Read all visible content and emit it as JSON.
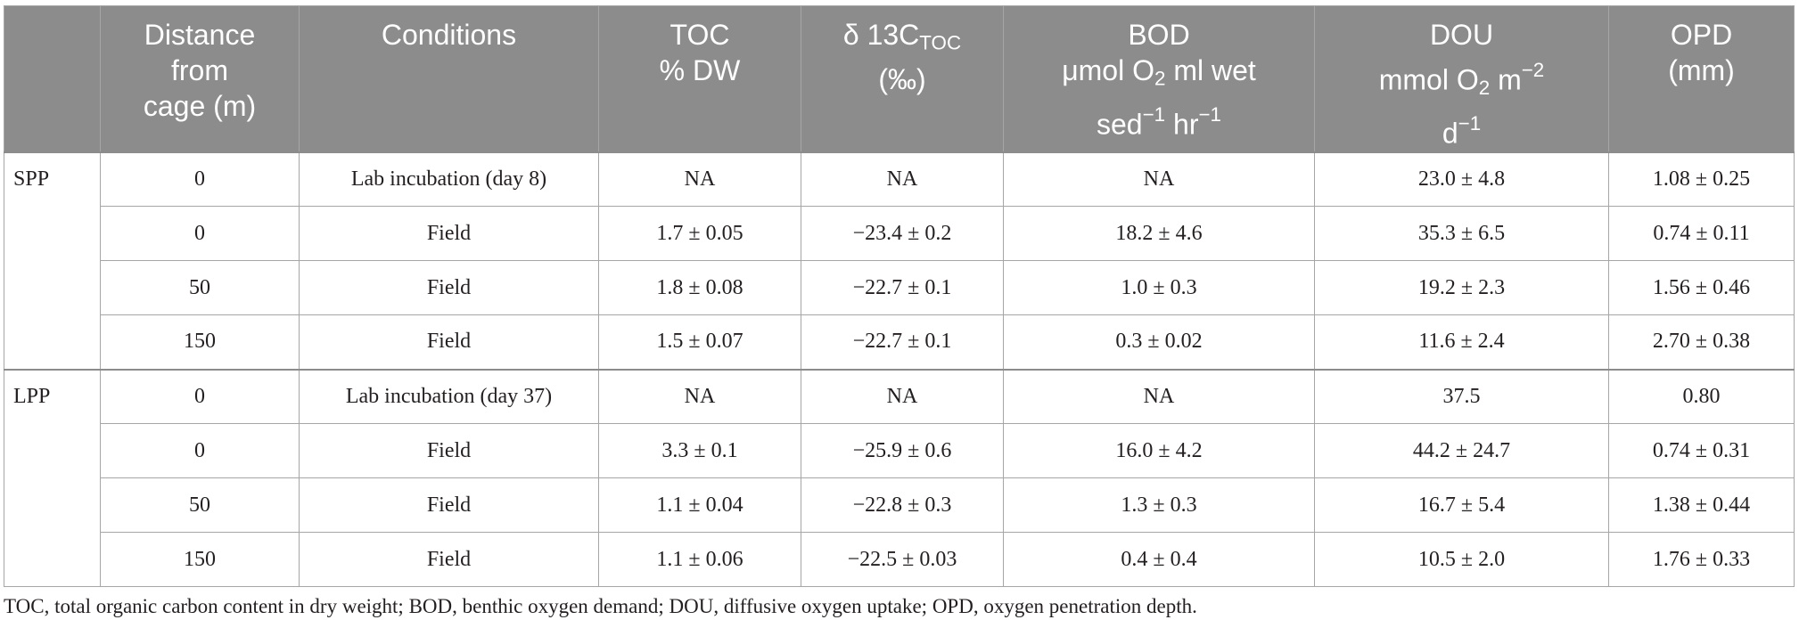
{
  "table": {
    "columns": [
      {
        "col_html": ""
      },
      {
        "col_html": "Distance<br>from<br>cage (m)"
      },
      {
        "col_html": "Conditions"
      },
      {
        "col_html": "TOC<br>% DW"
      },
      {
        "col_html": "δ 13C<sub>TOC</sub><br>(‰)"
      },
      {
        "col_html": "BOD<br>μmol O<sub>2</sub> ml wet<br>sed<sup>−1</sup> hr<sup>−1</sup>"
      },
      {
        "col_html": "DOU<br>mmol O<sub>2</sub> m<sup>−2</sup><br>d<sup>−1</sup>"
      },
      {
        "col_html": "OPD<br>(mm)"
      }
    ],
    "groups": [
      {
        "label": "SPP",
        "rows": [
          {
            "distance": "0",
            "conditions": "Lab incubation (day 8)",
            "toc": "NA",
            "d13c": "NA",
            "bod": "NA",
            "dou": "23.0 ± 4.8",
            "opd": "1.08 ± 0.25"
          },
          {
            "distance": "0",
            "conditions": "Field",
            "toc": "1.7 ± 0.05",
            "d13c": "−23.4 ± 0.2",
            "bod": "18.2 ± 4.6",
            "dou": "35.3 ± 6.5",
            "opd": "0.74 ± 0.11"
          },
          {
            "distance": "50",
            "conditions": "Field",
            "toc": "1.8 ± 0.08",
            "d13c": "−22.7 ± 0.1",
            "bod": "1.0 ± 0.3",
            "dou": "19.2 ± 2.3",
            "opd": "1.56 ± 0.46"
          },
          {
            "distance": "150",
            "conditions": "Field",
            "toc": "1.5 ± 0.07",
            "d13c": "−22.7 ± 0.1",
            "bod": "0.3 ± 0.02",
            "dou": "11.6 ± 2.4",
            "opd": "2.70 ± 0.38"
          }
        ]
      },
      {
        "label": "LPP",
        "rows": [
          {
            "distance": "0",
            "conditions": "Lab incubation (day 37)",
            "toc": "NA",
            "d13c": "NA",
            "bod": "NA",
            "dou": "37.5",
            "opd": "0.80"
          },
          {
            "distance": "0",
            "conditions": "Field",
            "toc": "3.3 ± 0.1",
            "d13c": "−25.9 ± 0.6",
            "bod": "16.0 ± 4.2",
            "dou": "44.2 ± 24.7",
            "opd": "0.74 ± 0.31"
          },
          {
            "distance": "50",
            "conditions": "Field",
            "toc": "1.1 ± 0.04",
            "d13c": "−22.8 ± 0.3",
            "bod": "1.3 ± 0.3",
            "dou": "16.7 ± 5.4",
            "opd": "1.38 ± 0.44"
          },
          {
            "distance": "150",
            "conditions": "Field",
            "toc": "1.1 ± 0.06",
            "d13c": "−22.5 ± 0.03",
            "bod": "0.4 ± 0.4",
            "dou": "10.5 ± 2.0",
            "opd": "1.76 ± 0.33"
          }
        ]
      }
    ]
  },
  "footnote": "TOC, total organic carbon content in dry weight; BOD, benthic oxygen demand; DOU, diffusive oxygen uptake; OPD, oxygen penetration depth."
}
